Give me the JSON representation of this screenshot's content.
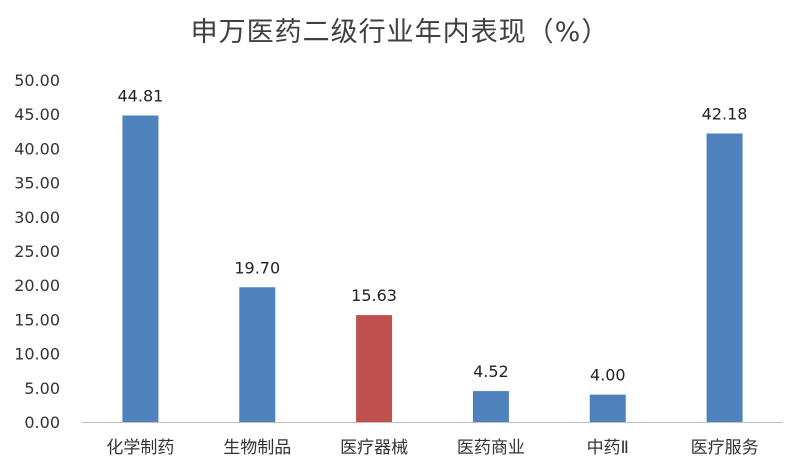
{
  "chart_data": {
    "type": "bar",
    "title": "申万医药二级行业年内表现（%）",
    "categories": [
      "化学制药",
      "生物制品",
      "医疗器械",
      "医药商业",
      "中药Ⅱ",
      "医疗服务"
    ],
    "values": [
      44.81,
      19.7,
      15.63,
      4.52,
      4.0,
      42.18
    ],
    "value_labels": [
      "44.81",
      "19.70",
      "15.63",
      "4.52",
      "4.00",
      "42.18"
    ],
    "bar_colors": [
      "#4F81BD",
      "#4F81BD",
      "#C0504D",
      "#4F81BD",
      "#4F81BD",
      "#4F81BD"
    ],
    "ylim": [
      0,
      50
    ],
    "yticks": [
      "0.00",
      "5.00",
      "10.00",
      "15.00",
      "20.00",
      "25.00",
      "30.00",
      "35.00",
      "40.00",
      "45.00",
      "50.00"
    ],
    "xlabel": "",
    "ylabel": "",
    "grid": false,
    "legend": "none"
  }
}
